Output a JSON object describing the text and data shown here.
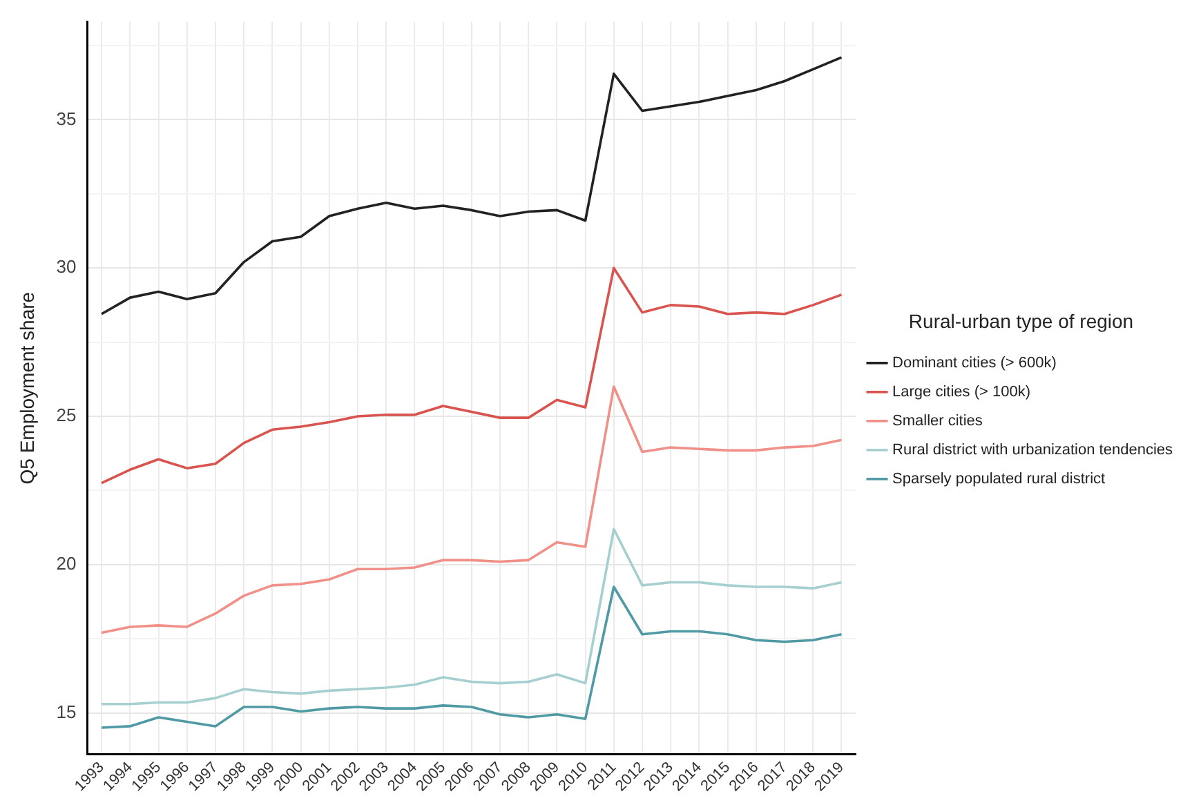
{
  "chart_data": {
    "type": "line",
    "ylabel": "Q5 Employment share",
    "legend_title": "Rural-urban type of region",
    "legend": "right",
    "grid": true,
    "marker": "none",
    "line_style": "solid",
    "categories": [
      "1993",
      "1994",
      "1995",
      "1996",
      "1997",
      "1998",
      "1999",
      "2000",
      "2001",
      "2002",
      "2003",
      "2004",
      "2005",
      "2006",
      "2007",
      "2008",
      "2009",
      "2010",
      "2011",
      "2012",
      "2013",
      "2014",
      "2015",
      "2016",
      "2017",
      "2018",
      "2019"
    ],
    "ylim": [
      13.6,
      38.3
    ],
    "yticks": [
      15,
      {
        "value": 17.5,
        "label": null
      },
      20,
      {
        "value": 22.5,
        "label": null
      },
      25,
      {
        "value": 27.5,
        "label": null
      },
      30,
      {
        "value": 32.5,
        "label": null
      },
      35,
      {
        "value": 37.5,
        "label": null
      }
    ],
    "series": [
      {
        "name": "Dominant cities (> 600k)",
        "color": "#222222",
        "values": [
          28.45,
          29.0,
          29.2,
          28.95,
          29.15,
          30.2,
          30.9,
          31.05,
          31.75,
          32.0,
          32.2,
          32.0,
          32.1,
          31.95,
          31.75,
          31.9,
          31.95,
          31.6,
          36.55,
          35.3,
          35.45,
          35.6,
          35.8,
          36.0,
          36.3,
          36.7,
          37.1
        ]
      },
      {
        "name": "Large cities (> 100k)",
        "color": "#d9534f",
        "values": [
          22.75,
          23.2,
          23.55,
          23.25,
          23.4,
          24.1,
          24.55,
          24.65,
          24.8,
          25.0,
          25.05,
          25.05,
          25.35,
          25.15,
          24.95,
          24.95,
          25.55,
          25.3,
          30.0,
          28.5,
          28.75,
          28.7,
          28.45,
          28.5,
          28.45,
          28.75,
          29.1
        ]
      },
      {
        "name": "Smaller cities",
        "color": "#f09088",
        "values": [
          17.7,
          17.9,
          17.95,
          17.9,
          18.35,
          18.95,
          19.3,
          19.35,
          19.5,
          19.85,
          19.85,
          19.9,
          20.15,
          20.15,
          20.1,
          20.15,
          20.75,
          20.6,
          26.0,
          23.8,
          23.95,
          23.9,
          23.85,
          23.85,
          23.95,
          24.0,
          24.2
        ]
      },
      {
        "name": "Rural district with urbanization tendencies",
        "color": "#a6cfd0",
        "values": [
          15.3,
          15.3,
          15.35,
          15.35,
          15.5,
          15.8,
          15.7,
          15.65,
          15.75,
          15.8,
          15.85,
          15.95,
          16.2,
          16.05,
          16.0,
          16.05,
          16.3,
          16.0,
          21.2,
          19.3,
          19.4,
          19.4,
          19.3,
          19.25,
          19.25,
          19.2,
          19.4
        ]
      },
      {
        "name": "Sparsely populated rural district",
        "color": "#4f9aa5",
        "values": [
          14.5,
          14.55,
          14.85,
          14.7,
          14.55,
          15.2,
          15.2,
          15.05,
          15.15,
          15.2,
          15.15,
          15.15,
          15.25,
          15.2,
          14.95,
          14.85,
          14.95,
          14.8,
          19.25,
          17.65,
          17.75,
          17.75,
          17.65,
          17.45,
          17.4,
          17.45,
          17.65
        ]
      }
    ]
  }
}
